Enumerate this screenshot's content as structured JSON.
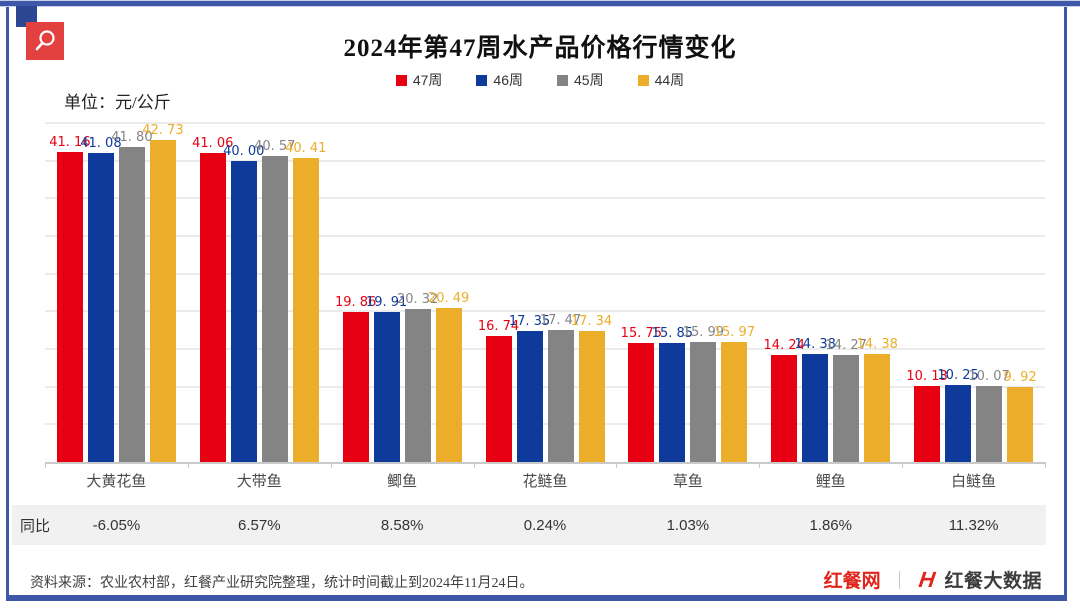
{
  "page": {
    "title": "2024年第47周水产品价格行情变化",
    "unit_label": "单位：元/公斤",
    "source_note": "资料来源：农业农村部，红餐产业研究院整理，统计时间截止到2024年11月24日。",
    "brand": {
      "site": "红餐网",
      "separator": "｜",
      "data_brand": "红餐大数据"
    }
  },
  "icons": {
    "top_left": "magnifier-icon",
    "brand_mark": "hongcan-bigdata-h-icon"
  },
  "colors": {
    "series_red": "#e60012",
    "series_blue": "#0e3a9b",
    "series_gray": "#848484",
    "series_yellow": "#ecae2a",
    "frame_navy": "#3e57a8",
    "icon_red": "#e34040",
    "brand_red": "#e1251b",
    "yoy_band_bg": "#f1f1f1",
    "gridline": "#ebebeb",
    "axis": "#c9c9c9"
  },
  "chart_data": {
    "type": "bar",
    "title": "2024年第47周水产品价格行情变化",
    "unit": "元/公斤",
    "categories": [
      "大黄花鱼",
      "大带鱼",
      "鲫鱼",
      "花鲢鱼",
      "草鱼",
      "鲤鱼",
      "白鲢鱼"
    ],
    "series": [
      {
        "name": "47周",
        "color": "#e60012",
        "values": [
          41.16,
          41.06,
          19.86,
          16.74,
          15.75,
          14.24,
          10.13
        ]
      },
      {
        "name": "46周",
        "color": "#0e3a9b",
        "values": [
          41.08,
          40.0,
          19.91,
          17.35,
          15.85,
          14.38,
          10.25
        ]
      },
      {
        "name": "45周",
        "color": "#848484",
        "values": [
          41.8,
          40.57,
          20.32,
          17.47,
          15.99,
          14.27,
          10.07
        ]
      },
      {
        "name": "44周",
        "color": "#ecae2a",
        "values": [
          42.73,
          40.41,
          20.49,
          17.34,
          15.97,
          14.38,
          9.92
        ]
      }
    ],
    "ylim": [
      0,
      45
    ],
    "grid_interval": 5,
    "grid": true,
    "legend_position": "top-center",
    "value_labels": true,
    "yoy_row": {
      "label": "同比",
      "values": [
        "-6.05%",
        "6.57%",
        "8.58%",
        "0.24%",
        "1.03%",
        "1.86%",
        "11.32%"
      ]
    }
  }
}
